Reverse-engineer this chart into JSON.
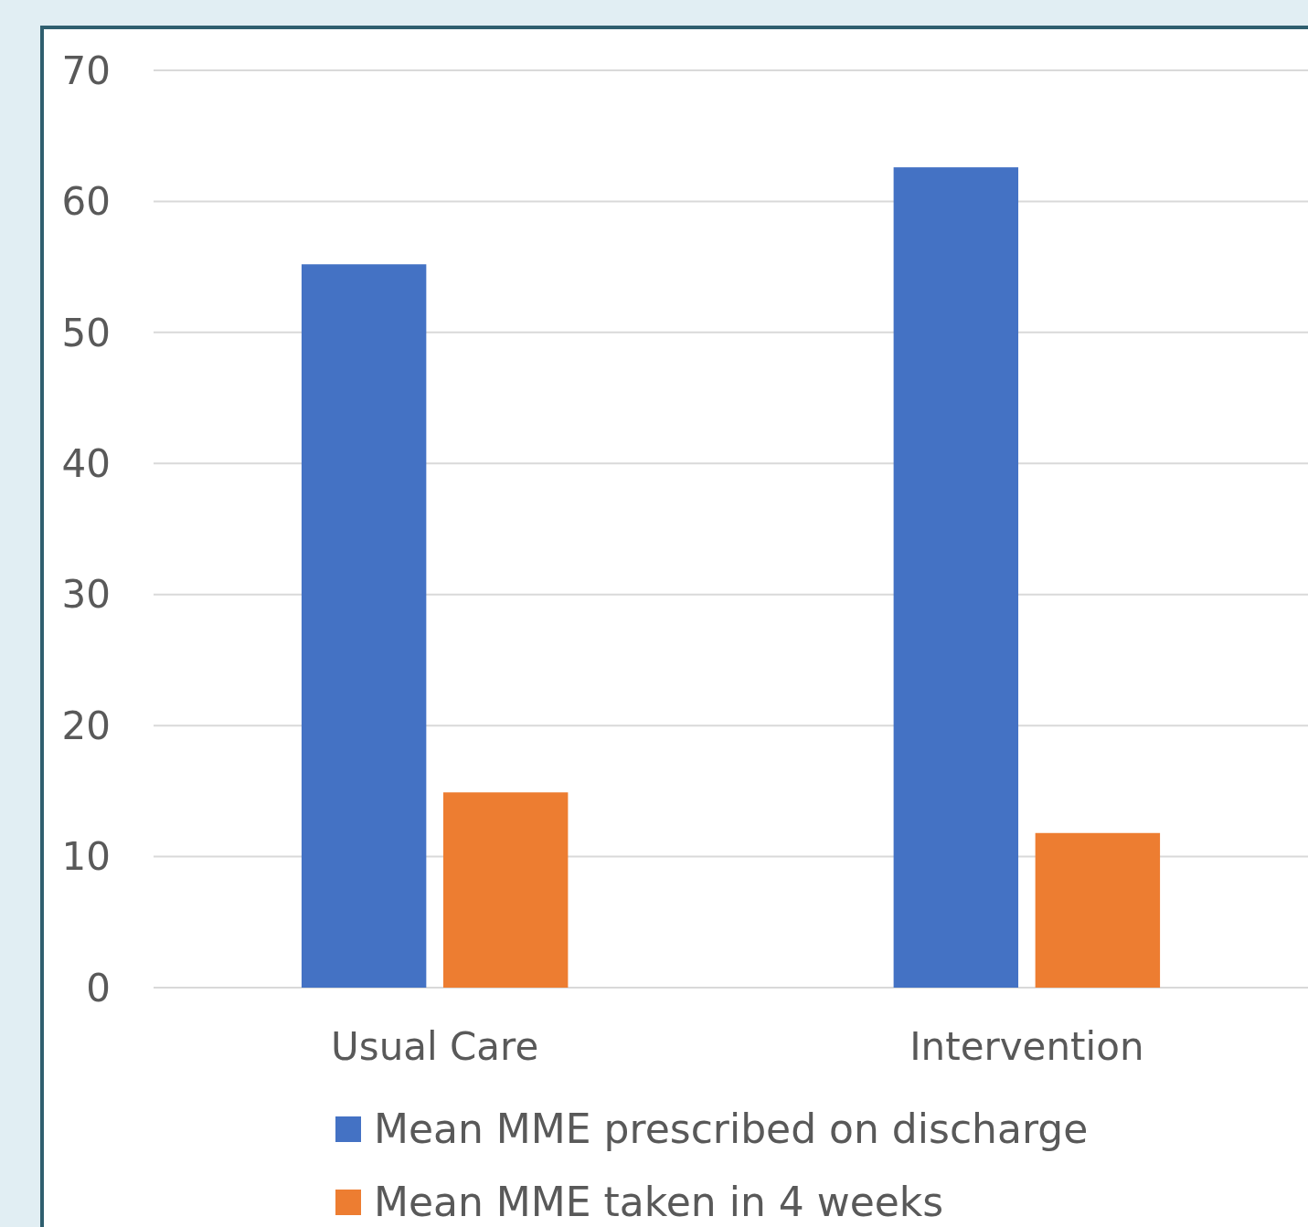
{
  "chart_data": {
    "type": "bar",
    "categories": [
      "Usual Care",
      "Intervention"
    ],
    "series": [
      {
        "name": "Mean MME prescribed on discharge",
        "color": "#4472c4",
        "values": [
          55.2,
          62.6
        ]
      },
      {
        "name": "Mean MME taken in 4 weeks",
        "color": "#ed7d31",
        "values": [
          14.9,
          11.8
        ]
      }
    ],
    "ylim": [
      0,
      70
    ],
    "yticks": [
      0,
      10,
      20,
      30,
      40,
      50,
      60,
      70
    ],
    "grid": "y",
    "legend": "bottom"
  }
}
